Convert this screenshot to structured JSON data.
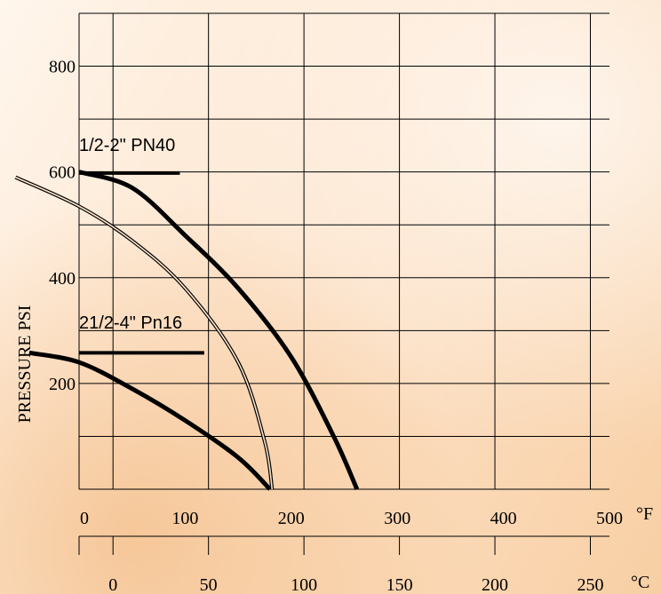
{
  "chart_data": {
    "type": "line",
    "title": "",
    "ylabel": "PRESSURE PSI",
    "xlabel_f": "°F",
    "xlabel_c": "°C",
    "ylim": [
      0,
      900
    ],
    "xlim_f": [
      0,
      500
    ],
    "y_ticks": [
      200,
      400,
      600,
      800
    ],
    "y_tick_labels": [
      "200",
      "400",
      "600",
      "800"
    ],
    "f_ticks": [
      0,
      100,
      200,
      300,
      400,
      500
    ],
    "f_tick_labels": [
      "0",
      "100",
      "200",
      "300",
      "400",
      "500"
    ],
    "c_ticks": [
      0,
      50,
      100,
      150,
      200,
      250
    ],
    "c_tick_labels": [
      "0",
      "50",
      "100",
      "150",
      "200",
      "250"
    ],
    "grid": true,
    "annotations": [
      "1/2-2\"  PN40",
      "21/2-4\"  Pn16"
    ],
    "series": [
      {
        "name": "1/2-2\" PN40",
        "style": "thick",
        "points": [
          [
            0,
            600
          ],
          [
            50,
            570
          ],
          [
            100,
            480
          ],
          [
            150,
            380
          ],
          [
            200,
            250
          ],
          [
            240,
            100
          ],
          [
            262,
            0
          ]
        ]
      },
      {
        "name": "21/2-4\" Pn16",
        "style": "thick",
        "points": [
          [
            -47,
            258
          ],
          [
            0,
            240
          ],
          [
            50,
            190
          ],
          [
            100,
            130
          ],
          [
            150,
            60
          ],
          [
            180,
            0
          ]
        ]
      },
      {
        "name": "",
        "style": "double",
        "points": [
          [
            -60,
            590
          ],
          [
            0,
            535
          ],
          [
            50,
            470
          ],
          [
            100,
            380
          ],
          [
            150,
            240
          ],
          [
            175,
            90
          ],
          [
            182,
            0
          ]
        ]
      },
      {
        "name": "",
        "style": "stub",
        "points": [
          [
            0,
            598
          ],
          [
            95,
            598
          ]
        ]
      },
      {
        "name": "",
        "style": "stub",
        "points": [
          [
            0,
            258
          ],
          [
            118,
            258
          ]
        ]
      }
    ]
  }
}
